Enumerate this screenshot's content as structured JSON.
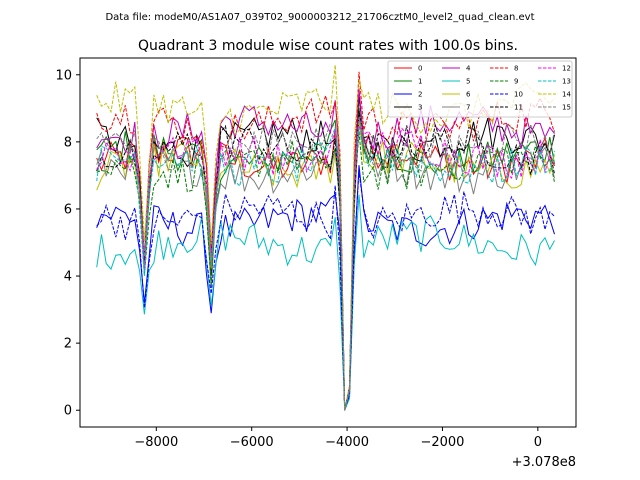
{
  "figure": {
    "suptitle": "Data file: modeM0/AS1A07_039T02_9000003212_21706cztM0_level2_quad_clean.evt"
  },
  "chart_data": {
    "type": "line",
    "title": "Quadrant 3 module wise count rates with 100.0s bins.",
    "xlabel": "",
    "ylabel": "",
    "x_offset_label": "+3.078e8",
    "xlim": [
      -9600,
      800
    ],
    "ylim": [
      -0.5,
      10.5
    ],
    "x_ticks": [
      -8000,
      -6000,
      -4000,
      -2000,
      0
    ],
    "x_tick_labels": [
      "−8000",
      "−6000",
      "−4000",
      "−2000",
      "0"
    ],
    "y_ticks": [
      0,
      2,
      4,
      6,
      8,
      10
    ],
    "y_tick_labels": [
      "0",
      "2",
      "4",
      "6",
      "8",
      "10"
    ],
    "grid": false,
    "legend_position": "top-right",
    "x_start": -9250,
    "bin_size": 100,
    "n_bins": 97,
    "dips": [
      {
        "center": -8250,
        "depth": 0.45
      },
      {
        "center": -6850,
        "depth": 0.45
      },
      {
        "center": -4020,
        "depth": 1.0
      }
    ],
    "series": [
      {
        "name": "0",
        "color": "#ff0000",
        "dash": false,
        "level": 7.5
      },
      {
        "name": "1",
        "color": "#008000",
        "dash": false,
        "level": 7.6
      },
      {
        "name": "2",
        "color": "#0000ff",
        "dash": false,
        "level": 5.6
      },
      {
        "name": "3",
        "color": "#000000",
        "dash": false,
        "level": 8.0
      },
      {
        "name": "4",
        "color": "#bf00bf",
        "dash": false,
        "level": 8.4
      },
      {
        "name": "5",
        "color": "#00bfbf",
        "dash": false,
        "level": 5.0
      },
      {
        "name": "6",
        "color": "#bfbf00",
        "dash": false,
        "level": 7.3
      },
      {
        "name": "7",
        "color": "#808080",
        "dash": false,
        "level": 7.2
      },
      {
        "name": "8",
        "color": "#ff0000",
        "dash": true,
        "level": 8.6
      },
      {
        "name": "9",
        "color": "#008000",
        "dash": true,
        "level": 7.3
      },
      {
        "name": "10",
        "color": "#0000ff",
        "dash": true,
        "level": 5.8
      },
      {
        "name": "11",
        "color": "#000000",
        "dash": true,
        "level": 7.8
      },
      {
        "name": "12",
        "color": "#ff00ff",
        "dash": true,
        "level": 7.7
      },
      {
        "name": "13",
        "color": "#00bfbf",
        "dash": true,
        "level": 7.4
      },
      {
        "name": "14",
        "color": "#bfbf00",
        "dash": true,
        "level": 9.0
      },
      {
        "name": "15",
        "color": "#808080",
        "dash": true,
        "level": 7.9
      }
    ]
  }
}
